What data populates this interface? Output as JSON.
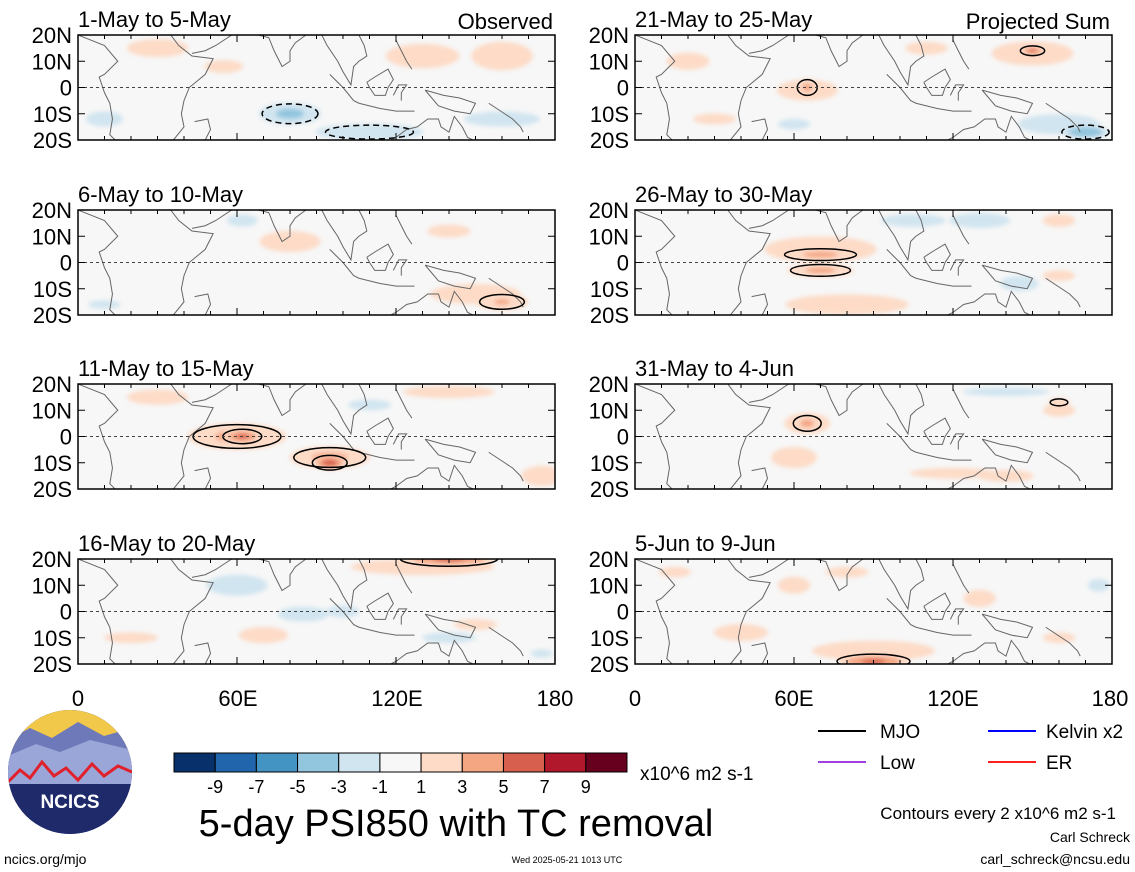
{
  "footer": {
    "title": "5-day PSI850 with TC removal",
    "url": "ncics.org/mjo",
    "timestamp": "Wed 2025-05-21 1013 UTC",
    "author": "Carl Schreck",
    "email": "carl_schreck@ncsu.edu",
    "contour_note": "Contours every 2 x10^6 m2 s-1",
    "logo_text": "NCICS"
  },
  "colorbar": {
    "unit": "x10^6 m2 s-1",
    "tick_labels": [
      "-9",
      "-7",
      "-5",
      "-3",
      "-1",
      "1",
      "3",
      "5",
      "7",
      "9"
    ],
    "colors": [
      "#08306b",
      "#2166ac",
      "#4393c3",
      "#92c5de",
      "#d1e5f0",
      "#f7f7f7",
      "#fddbc7",
      "#f4a582",
      "#d6604d",
      "#b2182b",
      "#67001f"
    ]
  },
  "legend": {
    "items": [
      {
        "label": "MJO",
        "color": "#000000"
      },
      {
        "label": "Kelvin x2",
        "color": "#0000ff"
      },
      {
        "label": "Low",
        "color": "#a040e0"
      },
      {
        "label": "ER",
        "color": "#ff2020"
      }
    ]
  },
  "chart_data": {
    "type": "heatmap",
    "variable": "5-day PSI850 with TC removal",
    "units": "x10^6 m2 s-1",
    "x_tick_labels": [
      "0",
      "60E",
      "120E",
      "180"
    ],
    "y_tick_labels": [
      "20N",
      "10N",
      "0",
      "10S",
      "20S"
    ],
    "xlim": [
      0,
      180
    ],
    "ylim": [
      -20,
      20
    ],
    "column_headers": [
      "Observed",
      "Projected Sum"
    ],
    "panels": [
      {
        "column": "Observed",
        "title": "1-May to 5-May",
        "anomalies": [
          [
            130,
            12,
            18,
            6,
            2.5
          ],
          [
            160,
            12,
            15,
            7,
            2.5
          ],
          [
            30,
            15,
            20,
            6,
            1.5
          ],
          [
            55,
            8,
            18,
            6,
            1.2
          ],
          [
            80,
            -10,
            14,
            5,
            -3.5
          ],
          [
            110,
            -17,
            25,
            4,
            -3
          ],
          [
            160,
            -12,
            25,
            5,
            -1.5
          ],
          [
            10,
            -12,
            12,
            5,
            -1.5
          ],
          [
            100,
            -2,
            20,
            5,
            0.8
          ]
        ]
      },
      {
        "column": "Observed",
        "title": "6-May to 10-May",
        "anomalies": [
          [
            80,
            8,
            20,
            7,
            1.5
          ],
          [
            140,
            12,
            20,
            6,
            1.2
          ],
          [
            62,
            16,
            10,
            4,
            -1.5
          ],
          [
            150,
            -12,
            22,
            5,
            2.5
          ],
          [
            160,
            -15,
            12,
            4,
            3.2
          ],
          [
            25,
            5,
            15,
            8,
            0.8
          ],
          [
            100,
            -8,
            20,
            6,
            -0.8
          ],
          [
            10,
            -16,
            15,
            4,
            -1.2
          ],
          [
            100,
            -17,
            15,
            3,
            -0.8
          ]
        ]
      },
      {
        "column": "Observed",
        "title": "11-May to 15-May",
        "anomalies": [
          [
            60,
            0,
            22,
            6,
            3.5
          ],
          [
            62,
            0,
            8,
            3,
            5.5
          ],
          [
            95,
            -8,
            18,
            5,
            3.5
          ],
          [
            95,
            -10,
            7,
            3,
            6
          ],
          [
            140,
            17,
            30,
            4,
            1.5
          ],
          [
            30,
            15,
            20,
            5,
            1.5
          ],
          [
            175,
            -15,
            10,
            5,
            2.5
          ],
          [
            110,
            12,
            20,
            5,
            -1.2
          ],
          [
            10,
            -10,
            20,
            5,
            -0.8
          ],
          [
            160,
            5,
            15,
            5,
            -0.8
          ]
        ]
      },
      {
        "column": "Observed",
        "title": "16-May to 20-May",
        "anomalies": [
          [
            130,
            17,
            35,
            4,
            2.5
          ],
          [
            140,
            20,
            20,
            3,
            5.5
          ],
          [
            60,
            10,
            20,
            7,
            -1.5
          ],
          [
            85,
            -1,
            20,
            6,
            -1.3
          ],
          [
            100,
            0,
            8,
            3,
            -2.5
          ],
          [
            70,
            -9,
            12,
            4,
            2.5
          ],
          [
            140,
            -10,
            25,
            5,
            -1.2
          ],
          [
            20,
            -10,
            25,
            5,
            1.2
          ],
          [
            150,
            -5,
            20,
            5,
            1.2
          ],
          [
            175,
            -16,
            10,
            4,
            -1.2
          ]
        ]
      },
      {
        "column": "Projected Sum",
        "title": "21-May to 25-May",
        "anomalies": [
          [
            150,
            13,
            20,
            6,
            2.5
          ],
          [
            150,
            14,
            5,
            2,
            5.5
          ],
          [
            110,
            15,
            20,
            6,
            1.2
          ],
          [
            65,
            -1,
            20,
            7,
            1.5
          ],
          [
            65,
            0,
            5,
            4,
            3.5
          ],
          [
            20,
            10,
            20,
            8,
            1.2
          ],
          [
            30,
            -12,
            20,
            5,
            1.2
          ],
          [
            160,
            -14,
            20,
            5,
            -2.5
          ],
          [
            170,
            -17,
            10,
            3,
            -5
          ],
          [
            60,
            -14,
            15,
            5,
            -1.2
          ],
          [
            100,
            5,
            20,
            5,
            -0.8
          ]
        ]
      },
      {
        "column": "Projected Sum",
        "title": "26-May to 30-May",
        "anomalies": [
          [
            70,
            5,
            30,
            7,
            2
          ],
          [
            70,
            3,
            18,
            3,
            3.5
          ],
          [
            70,
            -3,
            15,
            3,
            3.5
          ],
          [
            80,
            -16,
            30,
            5,
            2.5
          ],
          [
            105,
            16,
            30,
            6,
            -1.2
          ],
          [
            130,
            16,
            20,
            5,
            -1.5
          ],
          [
            145,
            -8,
            15,
            6,
            -1.3
          ],
          [
            40,
            -10,
            25,
            6,
            -0.8
          ],
          [
            160,
            16,
            15,
            6,
            1.2
          ],
          [
            160,
            -5,
            15,
            5,
            1.2
          ]
        ]
      },
      {
        "column": "Projected Sum",
        "title": "31-May to 4-Jun",
        "anomalies": [
          [
            65,
            5,
            15,
            7,
            1.5
          ],
          [
            65,
            5,
            7,
            4,
            3.5
          ],
          [
            60,
            -8,
            15,
            7,
            1.5
          ],
          [
            120,
            -14,
            40,
            5,
            1.2
          ],
          [
            140,
            -15,
            18,
            4,
            1.5
          ],
          [
            140,
            17,
            40,
            4,
            -1.2
          ],
          [
            15,
            10,
            25,
            8,
            -0.8
          ],
          [
            160,
            10,
            15,
            6,
            1.2
          ],
          [
            160,
            13,
            5,
            2,
            3
          ],
          [
            95,
            5,
            15,
            5,
            -0.8
          ],
          [
            150,
            -8,
            15,
            5,
            -0.8
          ]
        ]
      },
      {
        "column": "Projected Sum",
        "title": "5-Jun to 9-Jun",
        "anomalies": [
          [
            90,
            -15,
            30,
            5,
            2.5
          ],
          [
            90,
            -19,
            15,
            3,
            5.5
          ],
          [
            40,
            -8,
            25,
            8,
            1.2
          ],
          [
            80,
            15,
            20,
            5,
            1.2
          ],
          [
            60,
            10,
            15,
            8,
            1.2
          ],
          [
            130,
            5,
            15,
            8,
            1.2
          ],
          [
            160,
            -10,
            15,
            5,
            1.2
          ],
          [
            175,
            10,
            10,
            6,
            -1.2
          ],
          [
            155,
            -5,
            15,
            8,
            -0.8
          ],
          [
            15,
            15,
            15,
            5,
            1.2
          ]
        ]
      }
    ]
  }
}
